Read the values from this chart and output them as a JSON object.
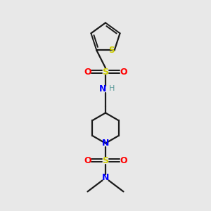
{
  "bg_color": "#e8e8e8",
  "bond_color": "#1a1a1a",
  "S_color": "#cccc00",
  "SO2_S_color": "#cccc00",
  "O_color": "#ff0000",
  "N_color": "#0000ff",
  "H_color": "#5a9a9a",
  "figsize": [
    3.0,
    3.0
  ],
  "dpi": 100,
  "xlim": [
    0,
    10
  ],
  "ylim": [
    0,
    10
  ]
}
